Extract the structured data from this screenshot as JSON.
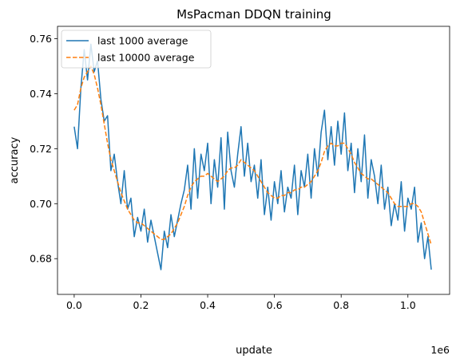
{
  "chart_data": {
    "type": "line",
    "title": "MsPacman DDQN training",
    "xlabel": "update",
    "ylabel": "accuracy",
    "x_offset_label": "1e6",
    "xlim": [
      -0.05,
      1.125
    ],
    "ylim": [
      0.667,
      0.7645
    ],
    "xticks": [
      0.0,
      0.2,
      0.4,
      0.6,
      0.8,
      1.0
    ],
    "xtick_labels": [
      "0.0",
      "0.2",
      "0.4",
      "0.6",
      "0.8",
      "1.0"
    ],
    "yticks": [
      0.68,
      0.7,
      0.72,
      0.74,
      0.76
    ],
    "ytick_labels": [
      "0.68",
      "0.70",
      "0.72",
      "0.74",
      "0.76"
    ],
    "legend_position": "top-left",
    "series": [
      {
        "name": "last 1000 average",
        "color": "#1f77b4",
        "style": "solid",
        "x": [
          0.0,
          0.01,
          0.02,
          0.03,
          0.04,
          0.05,
          0.06,
          0.07,
          0.08,
          0.09,
          0.1,
          0.11,
          0.12,
          0.13,
          0.14,
          0.15,
          0.16,
          0.17,
          0.18,
          0.19,
          0.2,
          0.21,
          0.22,
          0.23,
          0.24,
          0.25,
          0.26,
          0.27,
          0.28,
          0.29,
          0.3,
          0.31,
          0.32,
          0.33,
          0.34,
          0.35,
          0.36,
          0.37,
          0.38,
          0.39,
          0.4,
          0.41,
          0.42,
          0.43,
          0.44,
          0.45,
          0.46,
          0.47,
          0.48,
          0.49,
          0.5,
          0.51,
          0.52,
          0.53,
          0.54,
          0.55,
          0.56,
          0.57,
          0.58,
          0.59,
          0.6,
          0.61,
          0.62,
          0.63,
          0.64,
          0.65,
          0.66,
          0.67,
          0.68,
          0.69,
          0.7,
          0.71,
          0.72,
          0.73,
          0.74,
          0.75,
          0.76,
          0.77,
          0.78,
          0.79,
          0.8,
          0.81,
          0.82,
          0.83,
          0.84,
          0.85,
          0.86,
          0.87,
          0.88,
          0.89,
          0.9,
          0.91,
          0.92,
          0.93,
          0.94,
          0.95,
          0.96,
          0.97,
          0.98,
          0.99,
          1.0,
          1.01,
          1.02,
          1.03,
          1.04,
          1.05,
          1.06,
          1.07
        ],
        "values": [
          0.728,
          0.72,
          0.742,
          0.756,
          0.745,
          0.758,
          0.748,
          0.752,
          0.738,
          0.73,
          0.732,
          0.712,
          0.718,
          0.708,
          0.7,
          0.712,
          0.698,
          0.702,
          0.688,
          0.695,
          0.69,
          0.698,
          0.686,
          0.694,
          0.688,
          0.682,
          0.676,
          0.69,
          0.684,
          0.696,
          0.688,
          0.694,
          0.7,
          0.705,
          0.714,
          0.698,
          0.72,
          0.702,
          0.718,
          0.712,
          0.722,
          0.7,
          0.716,
          0.706,
          0.724,
          0.698,
          0.726,
          0.712,
          0.706,
          0.718,
          0.728,
          0.71,
          0.722,
          0.708,
          0.714,
          0.702,
          0.716,
          0.696,
          0.706,
          0.694,
          0.708,
          0.7,
          0.712,
          0.697,
          0.706,
          0.702,
          0.714,
          0.696,
          0.712,
          0.706,
          0.718,
          0.702,
          0.72,
          0.71,
          0.726,
          0.734,
          0.716,
          0.728,
          0.714,
          0.73,
          0.718,
          0.733,
          0.712,
          0.722,
          0.704,
          0.72,
          0.708,
          0.725,
          0.702,
          0.716,
          0.71,
          0.7,
          0.714,
          0.698,
          0.706,
          0.692,
          0.7,
          0.694,
          0.708,
          0.69,
          0.702,
          0.698,
          0.706,
          0.686,
          0.693,
          0.68,
          0.688,
          0.676
        ]
      },
      {
        "name": "last 10000 average",
        "color": "#ff7f0e",
        "style": "dashed",
        "x": [
          0.0,
          0.01,
          0.02,
          0.03,
          0.04,
          0.05,
          0.06,
          0.07,
          0.08,
          0.09,
          0.1,
          0.11,
          0.12,
          0.13,
          0.14,
          0.15,
          0.16,
          0.17,
          0.18,
          0.19,
          0.2,
          0.21,
          0.22,
          0.23,
          0.24,
          0.25,
          0.26,
          0.27,
          0.28,
          0.29,
          0.3,
          0.31,
          0.32,
          0.33,
          0.34,
          0.35,
          0.36,
          0.37,
          0.38,
          0.39,
          0.4,
          0.41,
          0.42,
          0.43,
          0.44,
          0.45,
          0.46,
          0.47,
          0.48,
          0.49,
          0.5,
          0.51,
          0.52,
          0.53,
          0.54,
          0.55,
          0.56,
          0.57,
          0.58,
          0.59,
          0.6,
          0.61,
          0.62,
          0.63,
          0.64,
          0.65,
          0.66,
          0.67,
          0.68,
          0.69,
          0.7,
          0.71,
          0.72,
          0.73,
          0.74,
          0.75,
          0.76,
          0.77,
          0.78,
          0.79,
          0.8,
          0.81,
          0.82,
          0.83,
          0.84,
          0.85,
          0.86,
          0.87,
          0.88,
          0.89,
          0.9,
          0.91,
          0.92,
          0.93,
          0.94,
          0.95,
          0.96,
          0.97,
          0.98,
          0.99,
          1.0,
          1.01,
          1.02,
          1.03,
          1.04,
          1.05,
          1.06,
          1.07
        ],
        "values": [
          0.734,
          0.736,
          0.742,
          0.746,
          0.748,
          0.75,
          0.747,
          0.742,
          0.736,
          0.729,
          0.722,
          0.716,
          0.712,
          0.708,
          0.704,
          0.701,
          0.698,
          0.696,
          0.694,
          0.693,
          0.693,
          0.692,
          0.691,
          0.69,
          0.689,
          0.688,
          0.687,
          0.687,
          0.688,
          0.689,
          0.691,
          0.693,
          0.696,
          0.699,
          0.703,
          0.706,
          0.708,
          0.709,
          0.71,
          0.71,
          0.711,
          0.71,
          0.709,
          0.708,
          0.709,
          0.71,
          0.712,
          0.713,
          0.713,
          0.714,
          0.716,
          0.715,
          0.714,
          0.713,
          0.712,
          0.71,
          0.708,
          0.706,
          0.704,
          0.703,
          0.702,
          0.702,
          0.703,
          0.703,
          0.704,
          0.704,
          0.705,
          0.705,
          0.706,
          0.706,
          0.707,
          0.708,
          0.71,
          0.712,
          0.715,
          0.719,
          0.721,
          0.722,
          0.721,
          0.721,
          0.722,
          0.722,
          0.72,
          0.718,
          0.715,
          0.713,
          0.711,
          0.71,
          0.709,
          0.709,
          0.708,
          0.707,
          0.706,
          0.705,
          0.704,
          0.702,
          0.7,
          0.699,
          0.699,
          0.699,
          0.699,
          0.7,
          0.7,
          0.699,
          0.697,
          0.693,
          0.689,
          0.685
        ]
      }
    ]
  }
}
